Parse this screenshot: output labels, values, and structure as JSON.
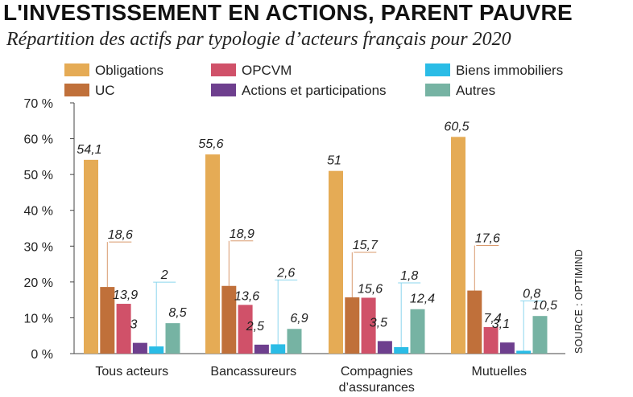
{
  "title": "L'INVESTISSEMENT EN ACTIONS, PARENT PAUVRE",
  "subtitle": "Répartition des actifs par typologie d’acteurs français pour 2020",
  "source": "SOURCE : OPTIMIND",
  "chart_data": {
    "type": "bar",
    "categories": [
      [
        "Tous acteurs"
      ],
      [
        "Bancassureurs"
      ],
      [
        "Compagnies",
        "d’assurances"
      ],
      [
        "Mutuelles"
      ]
    ],
    "series": [
      {
        "name": "Obligations",
        "color": "#E5AB55",
        "values": [
          54.1,
          55.6,
          51,
          60.5
        ],
        "labels": [
          "54,1",
          "55,6",
          "51",
          "60,5"
        ]
      },
      {
        "name": "UC",
        "color": "#C0703A",
        "values": [
          18.6,
          18.9,
          15.7,
          17.6
        ],
        "labels": [
          "18,6",
          "18,9",
          "15,7",
          "17,6"
        ]
      },
      {
        "name": "OPCVM",
        "color": "#D05169",
        "values": [
          13.9,
          13.6,
          15.6,
          7.4
        ],
        "labels": [
          "13,9",
          "13,6",
          "15,6",
          "7,4"
        ]
      },
      {
        "name": "Actions et participations",
        "color": "#6E3F8E",
        "values": [
          3,
          2.5,
          3.5,
          3.1
        ],
        "labels": [
          "3",
          "2,5",
          "3,5",
          "3,1"
        ]
      },
      {
        "name": "Biens immobiliers",
        "color": "#2ABCE6",
        "values": [
          2,
          2.6,
          1.8,
          0.8
        ],
        "labels": [
          "2",
          "2,6",
          "1,8",
          "0,8"
        ]
      },
      {
        "name": "Autres",
        "color": "#76B3A3",
        "values": [
          8.5,
          6.9,
          12.4,
          10.5
        ],
        "labels": [
          "8,5",
          "6,9",
          "12,4",
          "10,5"
        ]
      }
    ],
    "yticks": [
      "0 %",
      "10 %",
      "20 %",
      "30 %",
      "40 %",
      "50 %",
      "60 %",
      "70 %"
    ],
    "ylim": [
      0,
      70
    ],
    "ylabel": "",
    "xlabel": "",
    "legend": "top",
    "grid": false
  }
}
